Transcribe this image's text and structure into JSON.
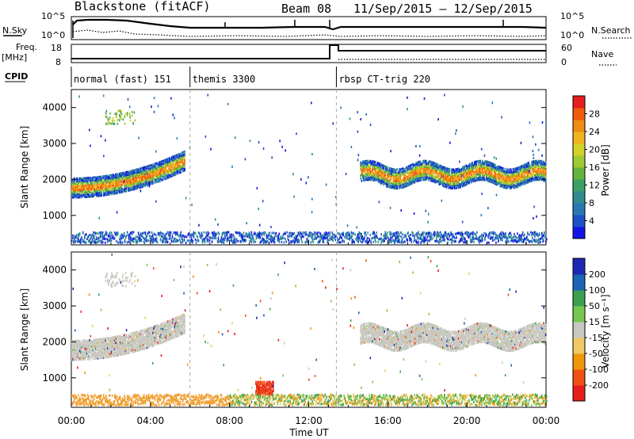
{
  "header": {
    "title": "Blackstone (fitACF)",
    "beam": "Beam 08",
    "dates": "11/Sep/2015 – 12/Sep/2015"
  },
  "summary_panels": {
    "nsky_label": "N.Sky",
    "nsky_ticks": [
      "10^5",
      "10^0"
    ],
    "nsearch_label": "N.Search",
    "nsearch_ticks": [
      "10^5",
      "10^0"
    ],
    "freq_label": "Freq.",
    "freq_unit": "[MHz]",
    "freq_ticks": [
      "18",
      "8"
    ],
    "nave_label": "Nave",
    "nave_ticks": [
      "60",
      "0"
    ],
    "cpid_label": "CPID"
  },
  "cpid_segments": [
    {
      "label": "normal (fast) 151",
      "start_hour": 0
    },
    {
      "label": "themis 3300",
      "start_hour": 6
    },
    {
      "label": "rbsp CT-trig 220",
      "start_hour": 13.4
    }
  ],
  "panels": {
    "power": {
      "ylabel": "Slant Range [km]",
      "colorbar_label": "Power [dB]"
    },
    "velocity": {
      "ylabel": "Slant Range [km]",
      "colorbar_label": "Velocity [m s⁻¹]"
    }
  },
  "xaxis_label": "Time UT",
  "chart_data": [
    {
      "type": "heatmap",
      "name": "power",
      "x": {
        "label": "Time UT",
        "range_hours": [
          0,
          24
        ],
        "ticks": [
          "00:00",
          "04:00",
          "08:00",
          "12:00",
          "16:00",
          "20:00",
          "00:00"
        ]
      },
      "y": {
        "label": "Slant Range [km]",
        "range": [
          180,
          4500
        ],
        "ticks": [
          1000,
          2000,
          3000,
          4000
        ]
      },
      "colorbar": {
        "label": "Power [dB]",
        "range": [
          0,
          32
        ],
        "ticks": [
          "4",
          "8",
          "12",
          "16",
          "20",
          "24",
          "28"
        ],
        "colors": [
          "#1414e6",
          "#1e50c8",
          "#2878b4",
          "#2e8c8c",
          "#3ca064",
          "#64b43c",
          "#a0c832",
          "#d2d228",
          "#f0b41e",
          "#f08c14",
          "#f05a0a",
          "#e61e1e"
        ]
      },
      "features": [
        {
          "name": "main-band-early",
          "hours": [
            0,
            5.7
          ],
          "range_km": [
            1550,
            2650
          ]
        },
        {
          "name": "main-band-late",
          "hours": [
            14.6,
            24
          ],
          "range_km": [
            1800,
            2400
          ]
        },
        {
          "name": "near-range-clutter",
          "hours": [
            0,
            24
          ],
          "range_km": [
            200,
            500
          ]
        }
      ]
    },
    {
      "type": "heatmap",
      "name": "velocity",
      "x": {
        "label": "Time UT",
        "range_hours": [
          0,
          24
        ],
        "ticks": [
          "00:00",
          "04:00",
          "08:00",
          "12:00",
          "16:00",
          "20:00",
          "00:00"
        ]
      },
      "y": {
        "label": "Slant Range [km]",
        "range": [
          180,
          4500
        ],
        "ticks": [
          1000,
          2000,
          3000,
          4000
        ]
      },
      "colorbar": {
        "label": "Velocity [m s⁻¹]",
        "range": [
          -250,
          250
        ],
        "ticks": [
          "200",
          "100",
          "50",
          "15",
          "-15",
          "-50",
          "-100",
          "-200"
        ],
        "colors": [
          "#e61e1e",
          "#f05014",
          "#f0960a",
          "#f0c864",
          "#c8c8c0",
          "#78c850",
          "#3ca050",
          "#1e64b4",
          "#1e28b4"
        ]
      },
      "features": [
        {
          "name": "ground-scatter-band-early",
          "hours": [
            0,
            5.7
          ],
          "range_km": [
            1550,
            2650
          ],
          "velocity": "±15"
        },
        {
          "name": "ground-scatter-band-late",
          "hours": [
            14.6,
            24
          ],
          "range_km": [
            1800,
            2400
          ],
          "velocity": "±15"
        },
        {
          "name": "negative-velocity-patch",
          "hours": [
            9.3,
            10.2
          ],
          "range_km": [
            500,
            900
          ],
          "velocity": "-200"
        }
      ]
    }
  ]
}
